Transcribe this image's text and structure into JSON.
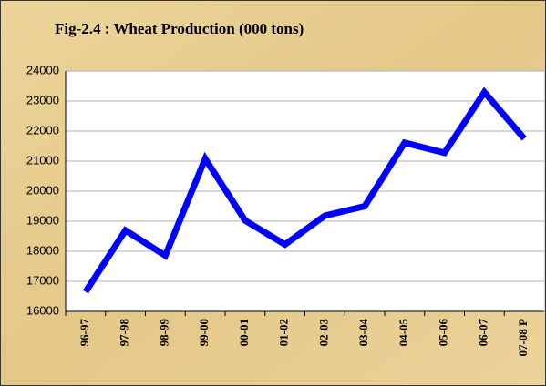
{
  "chart_data": {
    "type": "line",
    "title": "Fig-2.4 : Wheat Production (000 tons)",
    "categories": [
      "96-97",
      "97-98",
      "98-99",
      "99-00",
      "00-01",
      "01-02",
      "02-03",
      "03-04",
      "04-05",
      "05-06",
      "06-07",
      "07-08 P"
    ],
    "series": [
      {
        "name": "Wheat Production",
        "color": "#0000ff",
        "values": [
          16650,
          18694,
          17858,
          21079,
          19024,
          18226,
          19183,
          19500,
          21612,
          21277,
          23295,
          21750
        ]
      }
    ],
    "ylim": [
      16000,
      24000
    ],
    "yticks": [
      16000,
      17000,
      18000,
      19000,
      20000,
      21000,
      22000,
      23000,
      24000
    ],
    "grid": true
  }
}
